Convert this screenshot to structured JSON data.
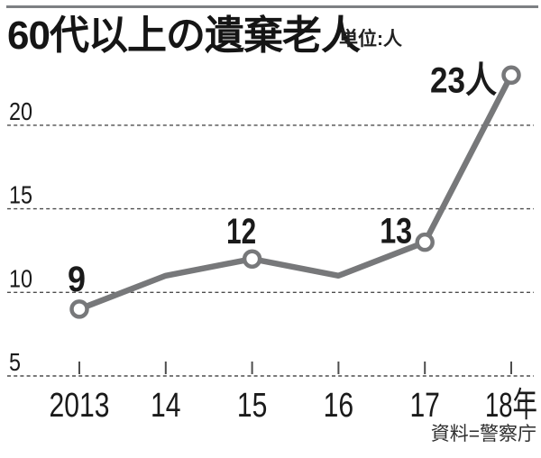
{
  "header": {
    "title": "60代以上の遺棄老人",
    "unit_label": "単位:人"
  },
  "source_label": "資料=警察庁",
  "chart_data": {
    "type": "line",
    "title": "60代以上の遺棄老人",
    "unit": "人",
    "x_categories": [
      "2013",
      "14",
      "15",
      "16",
      "17",
      "18年"
    ],
    "series": [
      {
        "name": "60代以上の遺棄老人",
        "values": [
          9,
          11,
          12,
          11,
          13,
          23
        ]
      }
    ],
    "point_labels": [
      {
        "index": 0,
        "text": "9"
      },
      {
        "index": 2,
        "text": "12"
      },
      {
        "index": 4,
        "text": "13"
      },
      {
        "index": 5,
        "text": "23人"
      }
    ],
    "marker_point_indices": [
      0,
      2,
      4,
      5
    ],
    "y_ticks": [
      5,
      10,
      15,
      20
    ],
    "ylim": [
      5,
      24.5
    ],
    "xlabel": "",
    "ylabel": "人",
    "grid": "horizontal-dashed",
    "legend": "none",
    "line_color": "#77787a",
    "marker_fill": "#ffffff",
    "marker_stroke": "#77787a",
    "grid_color": "#4d4d4d",
    "text_color": "#1a1a1a",
    "source": "資料=警察庁"
  }
}
